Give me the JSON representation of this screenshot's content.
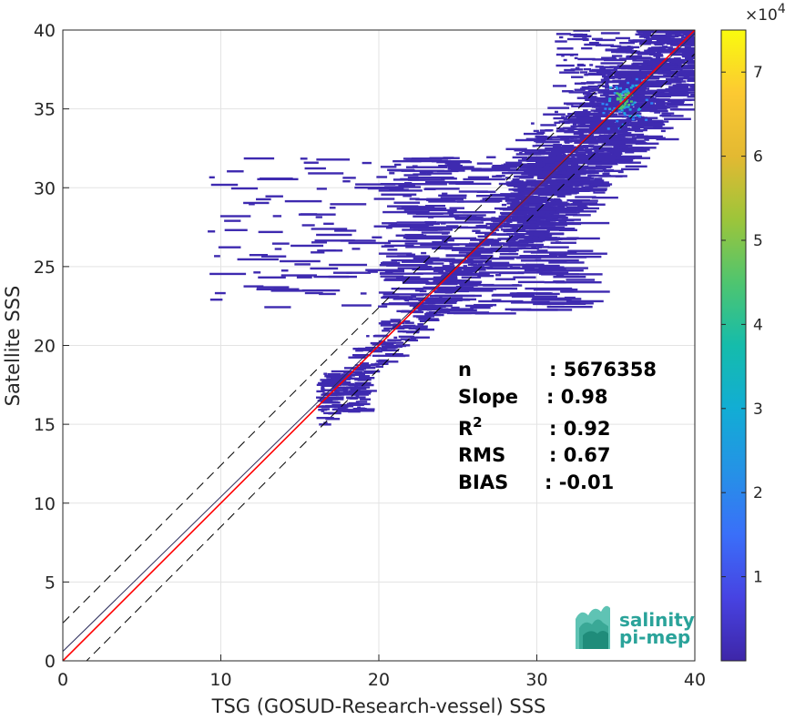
{
  "chart_data": {
    "type": "heatmap",
    "xlabel": "TSG (GOSUD-Research-vessel) SSS",
    "ylabel": "Satellite SSS",
    "xlim": [
      0,
      40
    ],
    "ylim": [
      0,
      40
    ],
    "x_ticks": [
      "0",
      "10",
      "20",
      "30",
      "40"
    ],
    "y_ticks": [
      "0",
      "5",
      "10",
      "15",
      "20",
      "25",
      "30",
      "35",
      "40"
    ],
    "grid": true,
    "colorbar": {
      "colormap": "parula",
      "range": [
        0,
        75000
      ],
      "ticks": [
        "1",
        "2",
        "3",
        "4",
        "5",
        "6",
        "7"
      ],
      "tick_values": [
        10000,
        20000,
        30000,
        40000,
        50000,
        60000,
        70000
      ],
      "multiplier": "×10",
      "multiplier_exp": "4"
    },
    "lines": [
      {
        "kind": "one-to-one",
        "color": "#ff0000",
        "x": [
          0,
          40
        ],
        "y": [
          0,
          40
        ]
      },
      {
        "kind": "regression",
        "color": "#2b2b5a",
        "x": [
          0,
          40
        ],
        "y": [
          0.6,
          39.8
        ]
      },
      {
        "kind": "upper-bound",
        "color": "#000000",
        "dash": true,
        "x": [
          0,
          40
        ],
        "y": [
          2.4,
          42.4
        ]
      },
      {
        "kind": "lower-bound",
        "color": "#000000",
        "dash": true,
        "x": [
          0,
          40
        ],
        "y": [
          -1.5,
          38.5
        ]
      }
    ],
    "stats": [
      {
        "label": "n",
        "value": ": 5676358"
      },
      {
        "label": "Slope",
        "value": ": 0.98"
      },
      {
        "label": "R",
        "sup": "2",
        "value": ": 0.92"
      },
      {
        "label": "RMS",
        "value": ": 0.67"
      },
      {
        "label": "BIAS",
        "value": ": -0.01"
      }
    ],
    "density_peak": {
      "x": 35.5,
      "y": 35.5
    },
    "colors": {
      "low": "#3e26a8",
      "mid": "#2e87f7",
      "high": "#f9fb0e"
    }
  },
  "logo": {
    "line1": "salinity",
    "line2": "pi-mep"
  }
}
